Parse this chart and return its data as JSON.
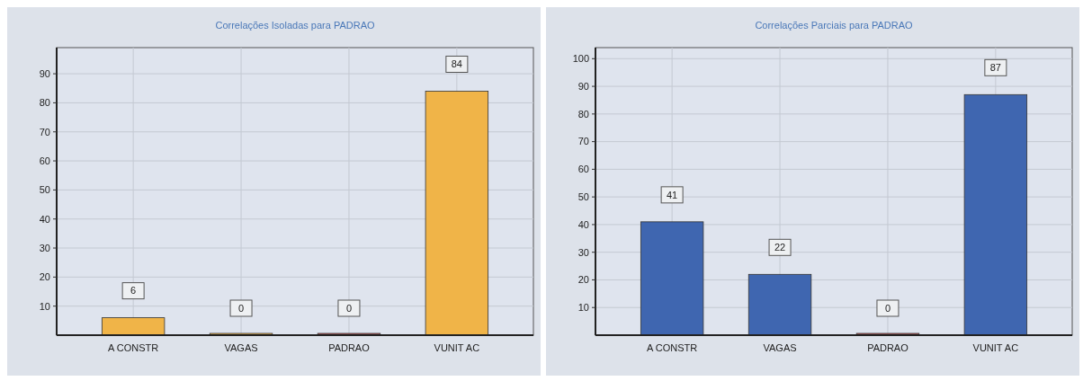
{
  "chart_data": [
    {
      "type": "bar",
      "title": "Correlações Isoladas para PADRAO",
      "categories": [
        "A CONSTR",
        "VAGAS",
        "PADRAO",
        "VUNIT AC"
      ],
      "values": [
        6,
        0,
        0,
        84
      ],
      "colors": [
        "#f0b448",
        "#f0b448",
        "#b85858",
        "#f0b448"
      ],
      "ylim": [
        0,
        99
      ],
      "yticks": [
        10,
        20,
        30,
        40,
        50,
        60,
        70,
        80,
        90
      ],
      "grid": true,
      "data_labels": true
    },
    {
      "type": "bar",
      "title": "Correlações Parciais para PADRAO",
      "categories": [
        "A CONSTR",
        "VAGAS",
        "PADRAO",
        "VUNIT AC"
      ],
      "values": [
        41,
        22,
        0,
        87
      ],
      "colors": [
        "#3f66b0",
        "#3f66b0",
        "#b85858",
        "#3f66b0"
      ],
      "ylim": [
        0,
        104
      ],
      "yticks": [
        10,
        20,
        30,
        40,
        50,
        60,
        70,
        80,
        90,
        100
      ],
      "grid": true,
      "data_labels": true
    }
  ]
}
